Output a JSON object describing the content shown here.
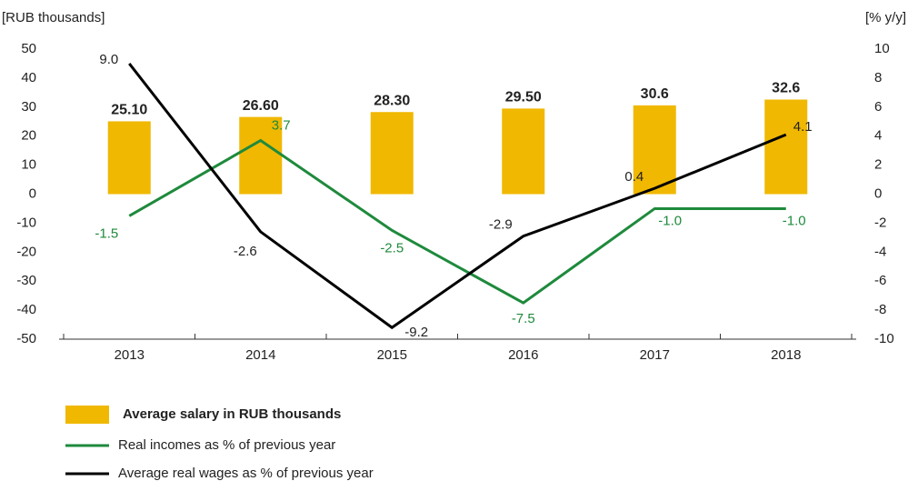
{
  "chart_data": {
    "type": "bar_line",
    "ylabel": "[RUB thousands]",
    "y2label": "[% y/y]",
    "categories": [
      "2013",
      "2014",
      "2015",
      "2016",
      "2017",
      "2018"
    ],
    "ylim": [
      -50,
      50
    ],
    "yticks": [
      50,
      40,
      30,
      20,
      10,
      0,
      -10,
      -20,
      -30,
      -40,
      -50
    ],
    "y2lim": [
      -10,
      10
    ],
    "y2ticks": [
      10,
      8,
      6,
      4,
      2,
      0,
      -2,
      -4,
      -6,
      -8,
      -10
    ],
    "series": [
      {
        "name": "Average salary in RUB thousands",
        "type": "bar",
        "color": "#f0b800",
        "values": [
          25.1,
          26.6,
          28.3,
          29.5,
          30.6,
          32.6
        ],
        "value_labels": [
          "25.10",
          "26.60",
          "28.30",
          "29.50",
          "30.6",
          "32.6"
        ]
      },
      {
        "name": "Real incomes as % of previous year",
        "type": "line",
        "axis": "y2",
        "color": "#1e8a3c",
        "values": [
          -1.5,
          3.7,
          -2.5,
          -7.5,
          -1.0,
          -1.0
        ],
        "value_labels": [
          "-1.5",
          "3.7",
          "-2.5",
          "-7.5",
          "-1.0",
          "-1.0"
        ]
      },
      {
        "name": "Average real wages as % of previous year",
        "type": "line",
        "axis": "y2",
        "color": "#000000",
        "values": [
          9.0,
          -2.6,
          -9.2,
          -2.9,
          0.4,
          4.1
        ],
        "value_labels": [
          "9.0",
          "-2.6",
          "-9.2",
          "-2.9",
          "0.4",
          "4.1"
        ]
      }
    ]
  }
}
